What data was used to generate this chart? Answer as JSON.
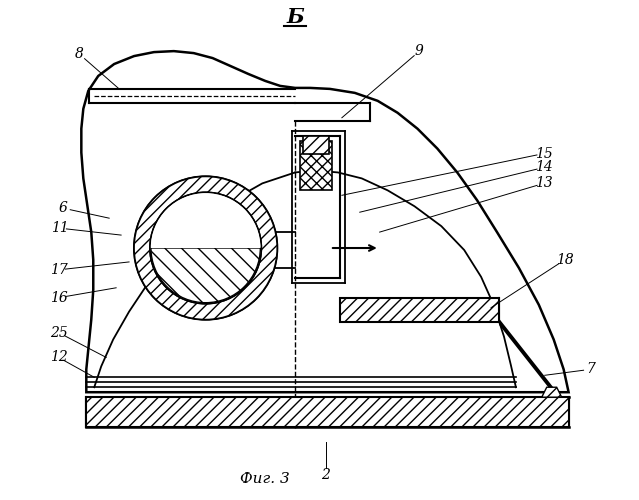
{
  "bg_color": "#ffffff",
  "fig_label": "Фиг. 3",
  "section_label": "Б",
  "labels": {
    "2": [
      326,
      476,
      326,
      443
    ],
    "6": [
      62,
      208,
      108,
      218
    ],
    "7": [
      590,
      372,
      545,
      378
    ],
    "8": [
      78,
      53,
      120,
      90
    ],
    "9": [
      418,
      52,
      340,
      118
    ],
    "11": [
      60,
      228,
      120,
      228
    ],
    "12": [
      58,
      358,
      98,
      378
    ],
    "13": [
      543,
      183,
      368,
      230
    ],
    "14": [
      543,
      168,
      360,
      210
    ],
    "15": [
      543,
      153,
      352,
      190
    ],
    "16": [
      58,
      298,
      118,
      290
    ],
    "17": [
      58,
      268,
      130,
      263
    ],
    "18": [
      564,
      262,
      490,
      307
    ],
    "25": [
      58,
      333,
      108,
      360
    ],
    "B": [
      295,
      18,
      295,
      18
    ]
  }
}
